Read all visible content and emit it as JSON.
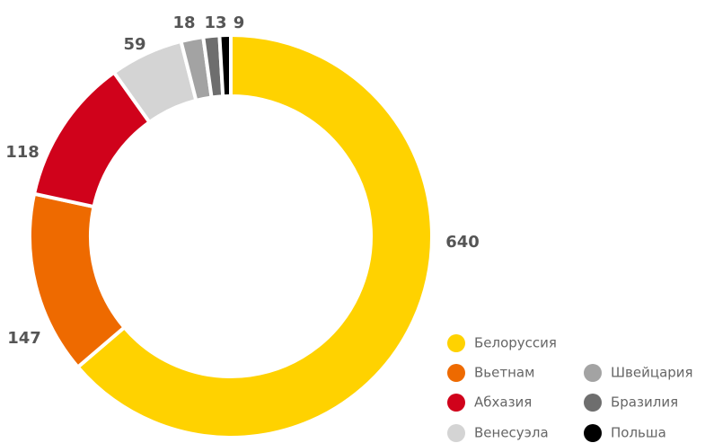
{
  "chart_data": {
    "type": "donut",
    "categories": [
      "Белоруссия",
      "Вьетнам",
      "Абхазия",
      "Венесуэла",
      "Швейцария",
      "Бразилия",
      "Польша"
    ],
    "values": [
      640,
      147,
      118,
      59,
      18,
      13,
      9
    ],
    "colors": [
      "#ffd200",
      "#ee6a00",
      "#d0021b",
      "#d4d4d4",
      "#a3a3a3",
      "#6e6e6e",
      "#000000"
    ]
  }
}
